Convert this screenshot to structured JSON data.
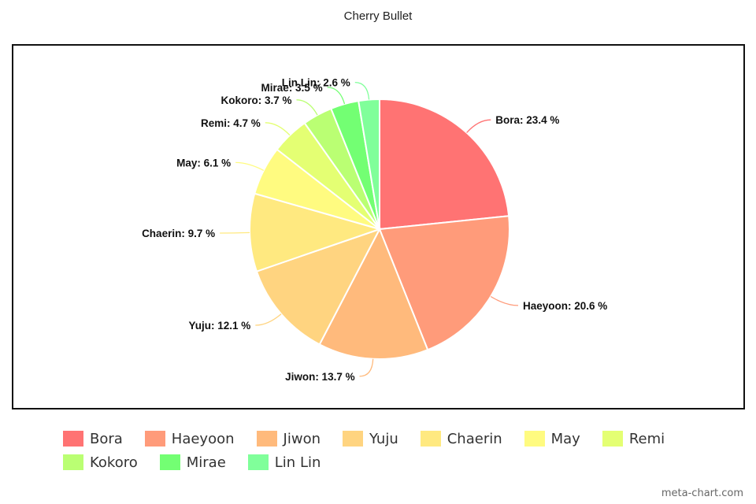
{
  "chart_data": {
    "type": "pie",
    "title": "Cherry Bullet",
    "slices": [
      {
        "label": "Bora",
        "value": 23.4,
        "display": "Bora: 23.4 %",
        "color": "#ff7373"
      },
      {
        "label": "Haeyoon",
        "value": 20.6,
        "display": "Haeyoon: 20.6 %",
        "color": "#ff9b7a"
      },
      {
        "label": "Jiwon",
        "value": 13.7,
        "display": "Jiwon: 13.7 %",
        "color": "#ffba7c"
      },
      {
        "label": "Yuju",
        "value": 12.1,
        "display": "Yuju: 12.1 %",
        "color": "#ffd480"
      },
      {
        "label": "Chaerin",
        "value": 9.7,
        "display": "Chaerin: 9.7 %",
        "color": "#ffe980"
      },
      {
        "label": "May",
        "value": 6.1,
        "display": "May: 6.1 %",
        "color": "#fffb80"
      },
      {
        "label": "Remi",
        "value": 4.7,
        "display": "Remi: 4.7 %",
        "color": "#e4ff73"
      },
      {
        "label": "Kokoro",
        "value": 3.7,
        "display": "Kokoro: 3.7 %",
        "color": "#baff73"
      },
      {
        "label": "Mirae",
        "value": 3.5,
        "display": "Mirae: 3.5 %",
        "color": "#73ff73"
      },
      {
        "label": "Lin Lin",
        "value": 2.6,
        "display": "Lin Lin: 2.6 %",
        "color": "#80ff9a"
      }
    ],
    "legend_position": "bottom"
  },
  "watermark": "meta-chart.com"
}
